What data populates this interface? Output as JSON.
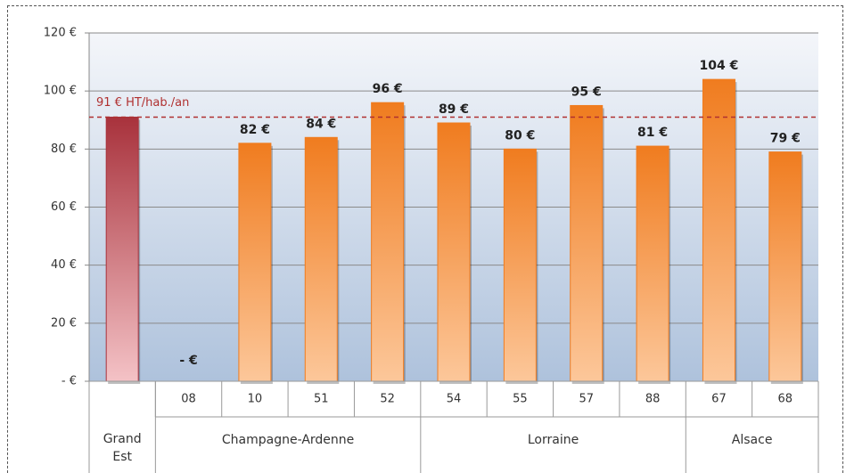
{
  "chart_data": {
    "type": "bar",
    "categories": [
      null,
      "08",
      "10",
      "51",
      "52",
      "54",
      "55",
      "57",
      "88",
      "67",
      "68"
    ],
    "groups": [
      {
        "label": "Grand Est",
        "count": 1
      },
      {
        "label": "Champagne-Ardenne",
        "count": 4
      },
      {
        "label": "Lorraine",
        "count": 4
      },
      {
        "label": "Alsace",
        "count": 2
      }
    ],
    "values": [
      91,
      0,
      82,
      84,
      96,
      89,
      80,
      95,
      81,
      104,
      79
    ],
    "value_labels": [
      null,
      "- €",
      "82 €",
      "84 €",
      "96 €",
      "89 €",
      "80 €",
      "95 €",
      "81 €",
      "104 €",
      "79 €"
    ],
    "colors": [
      "#a8323c",
      "#f07c1f",
      "#f07c1f",
      "#f07c1f",
      "#f07c1f",
      "#f07c1f",
      "#f07c1f",
      "#f07c1f",
      "#f07c1f",
      "#f07c1f",
      "#f07c1f"
    ],
    "ylim": [
      0,
      120
    ],
    "yticks": [
      {
        "value": 0,
        "label": "- €"
      },
      {
        "value": 20,
        "label": "20 €"
      },
      {
        "value": 40,
        "label": "40 €"
      },
      {
        "value": 60,
        "label": "60 €"
      },
      {
        "value": 80,
        "label": "80 €"
      },
      {
        "value": 100,
        "label": "100 €"
      },
      {
        "value": 120,
        "label": "120 €"
      }
    ],
    "grid": true,
    "reference_line": {
      "value": 91,
      "label": "91 € HT/hab./an",
      "color": "#b03030"
    }
  }
}
